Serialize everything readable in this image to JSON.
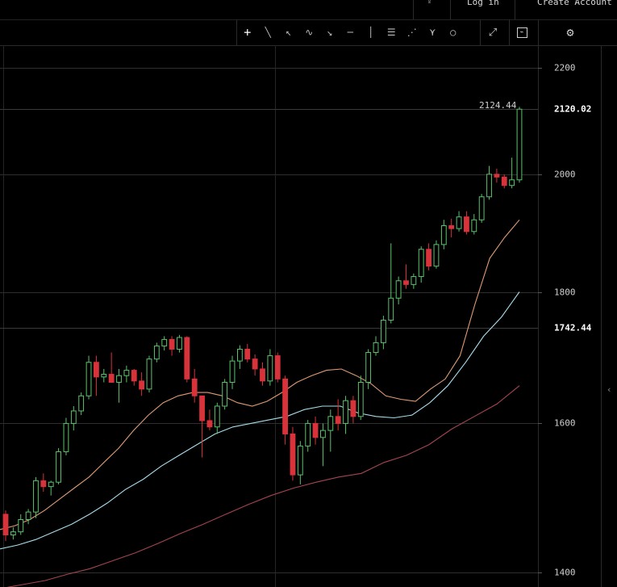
{
  "topbar": {
    "login_label": "Log in",
    "create_label": "Create Account"
  },
  "toolbar": {
    "tools": [
      {
        "name": "crosshair-icon",
        "glyph": "+"
      },
      {
        "name": "trendline-icon",
        "glyph": "╲"
      },
      {
        "name": "ray-icon",
        "glyph": "↖"
      },
      {
        "name": "curve-icon",
        "glyph": "∿"
      },
      {
        "name": "arrow-icon",
        "glyph": "↘"
      },
      {
        "name": "horizontal-line-icon",
        "glyph": "─"
      },
      {
        "name": "vertical-line-icon",
        "glyph": "│"
      },
      {
        "name": "fib-lines-icon",
        "glyph": "☰"
      },
      {
        "name": "fan-icon",
        "glyph": "⋰"
      },
      {
        "name": "pitchfork-icon",
        "glyph": "⋎"
      },
      {
        "name": "circle-icon",
        "glyph": "○"
      }
    ]
  },
  "colors": {
    "up": "#5bc26b",
    "down": "#d8323a",
    "ema_short": "#e09a72",
    "ema_mid": "#a8dcec",
    "ema_long": "#a5454f"
  },
  "chart_data": {
    "type": "candlestick",
    "y_scale": "log",
    "ylim": [
      1382,
      2245
    ],
    "y_ticks": [
      2200,
      2000,
      1800,
      1600,
      1400
    ],
    "markers": [
      {
        "label": "2120.02",
        "value": 2120.02,
        "bold": true
      },
      {
        "label": "1742.44",
        "value": 1742.44,
        "bold": true
      }
    ],
    "last_high_label": "2124.44",
    "candles": [
      [
        1475,
        1480,
        1440,
        1448
      ],
      [
        1448,
        1458,
        1442,
        1452
      ],
      [
        1452,
        1475,
        1448,
        1468
      ],
      [
        1468,
        1482,
        1462,
        1478
      ],
      [
        1478,
        1525,
        1470,
        1520
      ],
      [
        1520,
        1530,
        1505,
        1512
      ],
      [
        1512,
        1520,
        1500,
        1518
      ],
      [
        1518,
        1565,
        1515,
        1560
      ],
      [
        1560,
        1608,
        1555,
        1600
      ],
      [
        1600,
        1625,
        1590,
        1618
      ],
      [
        1618,
        1645,
        1612,
        1640
      ],
      [
        1640,
        1700,
        1635,
        1690
      ],
      [
        1690,
        1700,
        1640,
        1668
      ],
      [
        1668,
        1680,
        1660,
        1672
      ],
      [
        1672,
        1705,
        1660,
        1660
      ],
      [
        1660,
        1680,
        1630,
        1670
      ],
      [
        1670,
        1685,
        1660,
        1678
      ],
      [
        1678,
        1680,
        1655,
        1662
      ],
      [
        1662,
        1675,
        1640,
        1650
      ],
      [
        1650,
        1700,
        1645,
        1695
      ],
      [
        1695,
        1720,
        1690,
        1715
      ],
      [
        1715,
        1730,
        1708,
        1725
      ],
      [
        1725,
        1730,
        1700,
        1710
      ],
      [
        1710,
        1732,
        1705,
        1728
      ],
      [
        1728,
        1730,
        1660,
        1665
      ],
      [
        1665,
        1680,
        1630,
        1640
      ],
      [
        1640,
        1640,
        1552,
        1604
      ],
      [
        1604,
        1620,
        1590,
        1595
      ],
      [
        1595,
        1630,
        1585,
        1625
      ],
      [
        1625,
        1665,
        1620,
        1660
      ],
      [
        1660,
        1700,
        1650,
        1692
      ],
      [
        1692,
        1716,
        1680,
        1710
      ],
      [
        1710,
        1718,
        1690,
        1695
      ],
      [
        1695,
        1702,
        1670,
        1680
      ],
      [
        1680,
        1690,
        1655,
        1662
      ],
      [
        1662,
        1710,
        1655,
        1700
      ],
      [
        1700,
        1705,
        1660,
        1665
      ],
      [
        1665,
        1670,
        1570,
        1585
      ],
      [
        1585,
        1595,
        1520,
        1528
      ],
      [
        1528,
        1575,
        1515,
        1568
      ],
      [
        1568,
        1605,
        1560,
        1600
      ],
      [
        1600,
        1610,
        1570,
        1580
      ],
      [
        1580,
        1600,
        1540,
        1590
      ],
      [
        1590,
        1620,
        1560,
        1610
      ],
      [
        1610,
        1635,
        1590,
        1600
      ],
      [
        1600,
        1640,
        1585,
        1633
      ],
      [
        1633,
        1640,
        1600,
        1610
      ],
      [
        1610,
        1670,
        1605,
        1660
      ],
      [
        1660,
        1710,
        1650,
        1705
      ],
      [
        1705,
        1730,
        1700,
        1720
      ],
      [
        1720,
        1762,
        1710,
        1755
      ],
      [
        1755,
        1880,
        1750,
        1790
      ],
      [
        1790,
        1825,
        1780,
        1818
      ],
      [
        1818,
        1845,
        1805,
        1812
      ],
      [
        1812,
        1830,
        1805,
        1825
      ],
      [
        1825,
        1875,
        1815,
        1870
      ],
      [
        1870,
        1880,
        1835,
        1842
      ],
      [
        1842,
        1885,
        1838,
        1878
      ],
      [
        1878,
        1920,
        1870,
        1910
      ],
      [
        1910,
        1922,
        1890,
        1905
      ],
      [
        1905,
        1935,
        1900,
        1925
      ],
      [
        1925,
        1935,
        1895,
        1900
      ],
      [
        1900,
        1930,
        1895,
        1920
      ],
      [
        1920,
        1965,
        1915,
        1960
      ],
      [
        1960,
        2015,
        1955,
        2000
      ],
      [
        2000,
        2010,
        1985,
        1995
      ],
      [
        1995,
        2000,
        1975,
        1980
      ],
      [
        1980,
        2030,
        1975,
        1990
      ],
      [
        1990,
        2124.44,
        1985,
        2120.02
      ]
    ],
    "ema_short": [
      1455,
      1460,
      1468,
      1480,
      1495,
      1510,
      1525,
      1545,
      1565,
      1590,
      1612,
      1630,
      1640,
      1645,
      1645,
      1640,
      1630,
      1625,
      1632,
      1645,
      1660,
      1670,
      1678,
      1680,
      1670,
      1658,
      1640,
      1635,
      1632,
      1650,
      1665,
      1700,
      1780,
      1855,
      1890,
      1920
    ],
    "ema_mid": [
      1430,
      1435,
      1442,
      1452,
      1462,
      1475,
      1490,
      1508,
      1522,
      1540,
      1555,
      1570,
      1585,
      1595,
      1600,
      1605,
      1610,
      1620,
      1625,
      1625,
      1615,
      1610,
      1608,
      1612,
      1630,
      1655,
      1690,
      1730,
      1760,
      1800
    ],
    "ema_long": [
      1380,
      1385,
      1390,
      1398,
      1405,
      1415,
      1425,
      1437,
      1450,
      1462,
      1475,
      1488,
      1500,
      1510,
      1518,
      1525,
      1530,
      1545,
      1555,
      1570,
      1592,
      1610,
      1628,
      1655
    ]
  }
}
